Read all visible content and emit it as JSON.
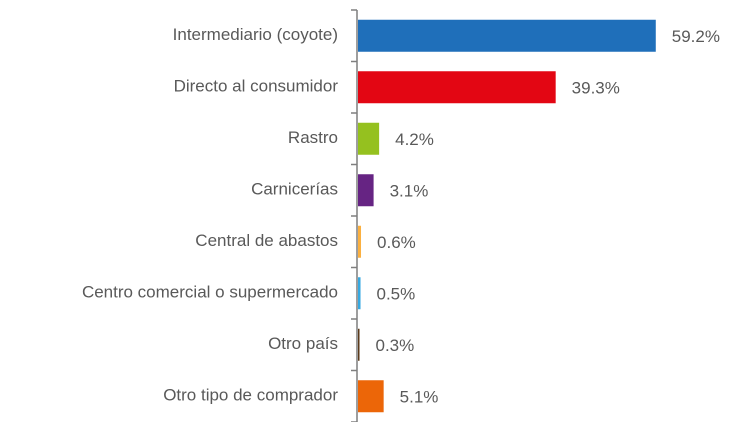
{
  "chart_data": {
    "type": "bar",
    "orientation": "horizontal",
    "categories": [
      "Intermediario (coyote)",
      "Directo al consumidor",
      "Rastro",
      "Carnicerías",
      "Central de abastos",
      "Centro comercial o supermercado",
      "Otro país",
      "Otro tipo de comprador"
    ],
    "values": [
      59.2,
      39.3,
      4.2,
      3.1,
      0.6,
      0.5,
      0.3,
      5.1
    ],
    "value_labels": [
      "59.2%",
      "39.3%",
      "4.2%",
      "3.1%",
      "0.6%",
      "0.5%",
      "0.3%",
      "5.1%"
    ],
    "colors": [
      "#1f6fba",
      "#e30613",
      "#95c11f",
      "#662483",
      "#fbb040",
      "#36a9e1",
      "#5a3a1a",
      "#ec6608"
    ]
  }
}
